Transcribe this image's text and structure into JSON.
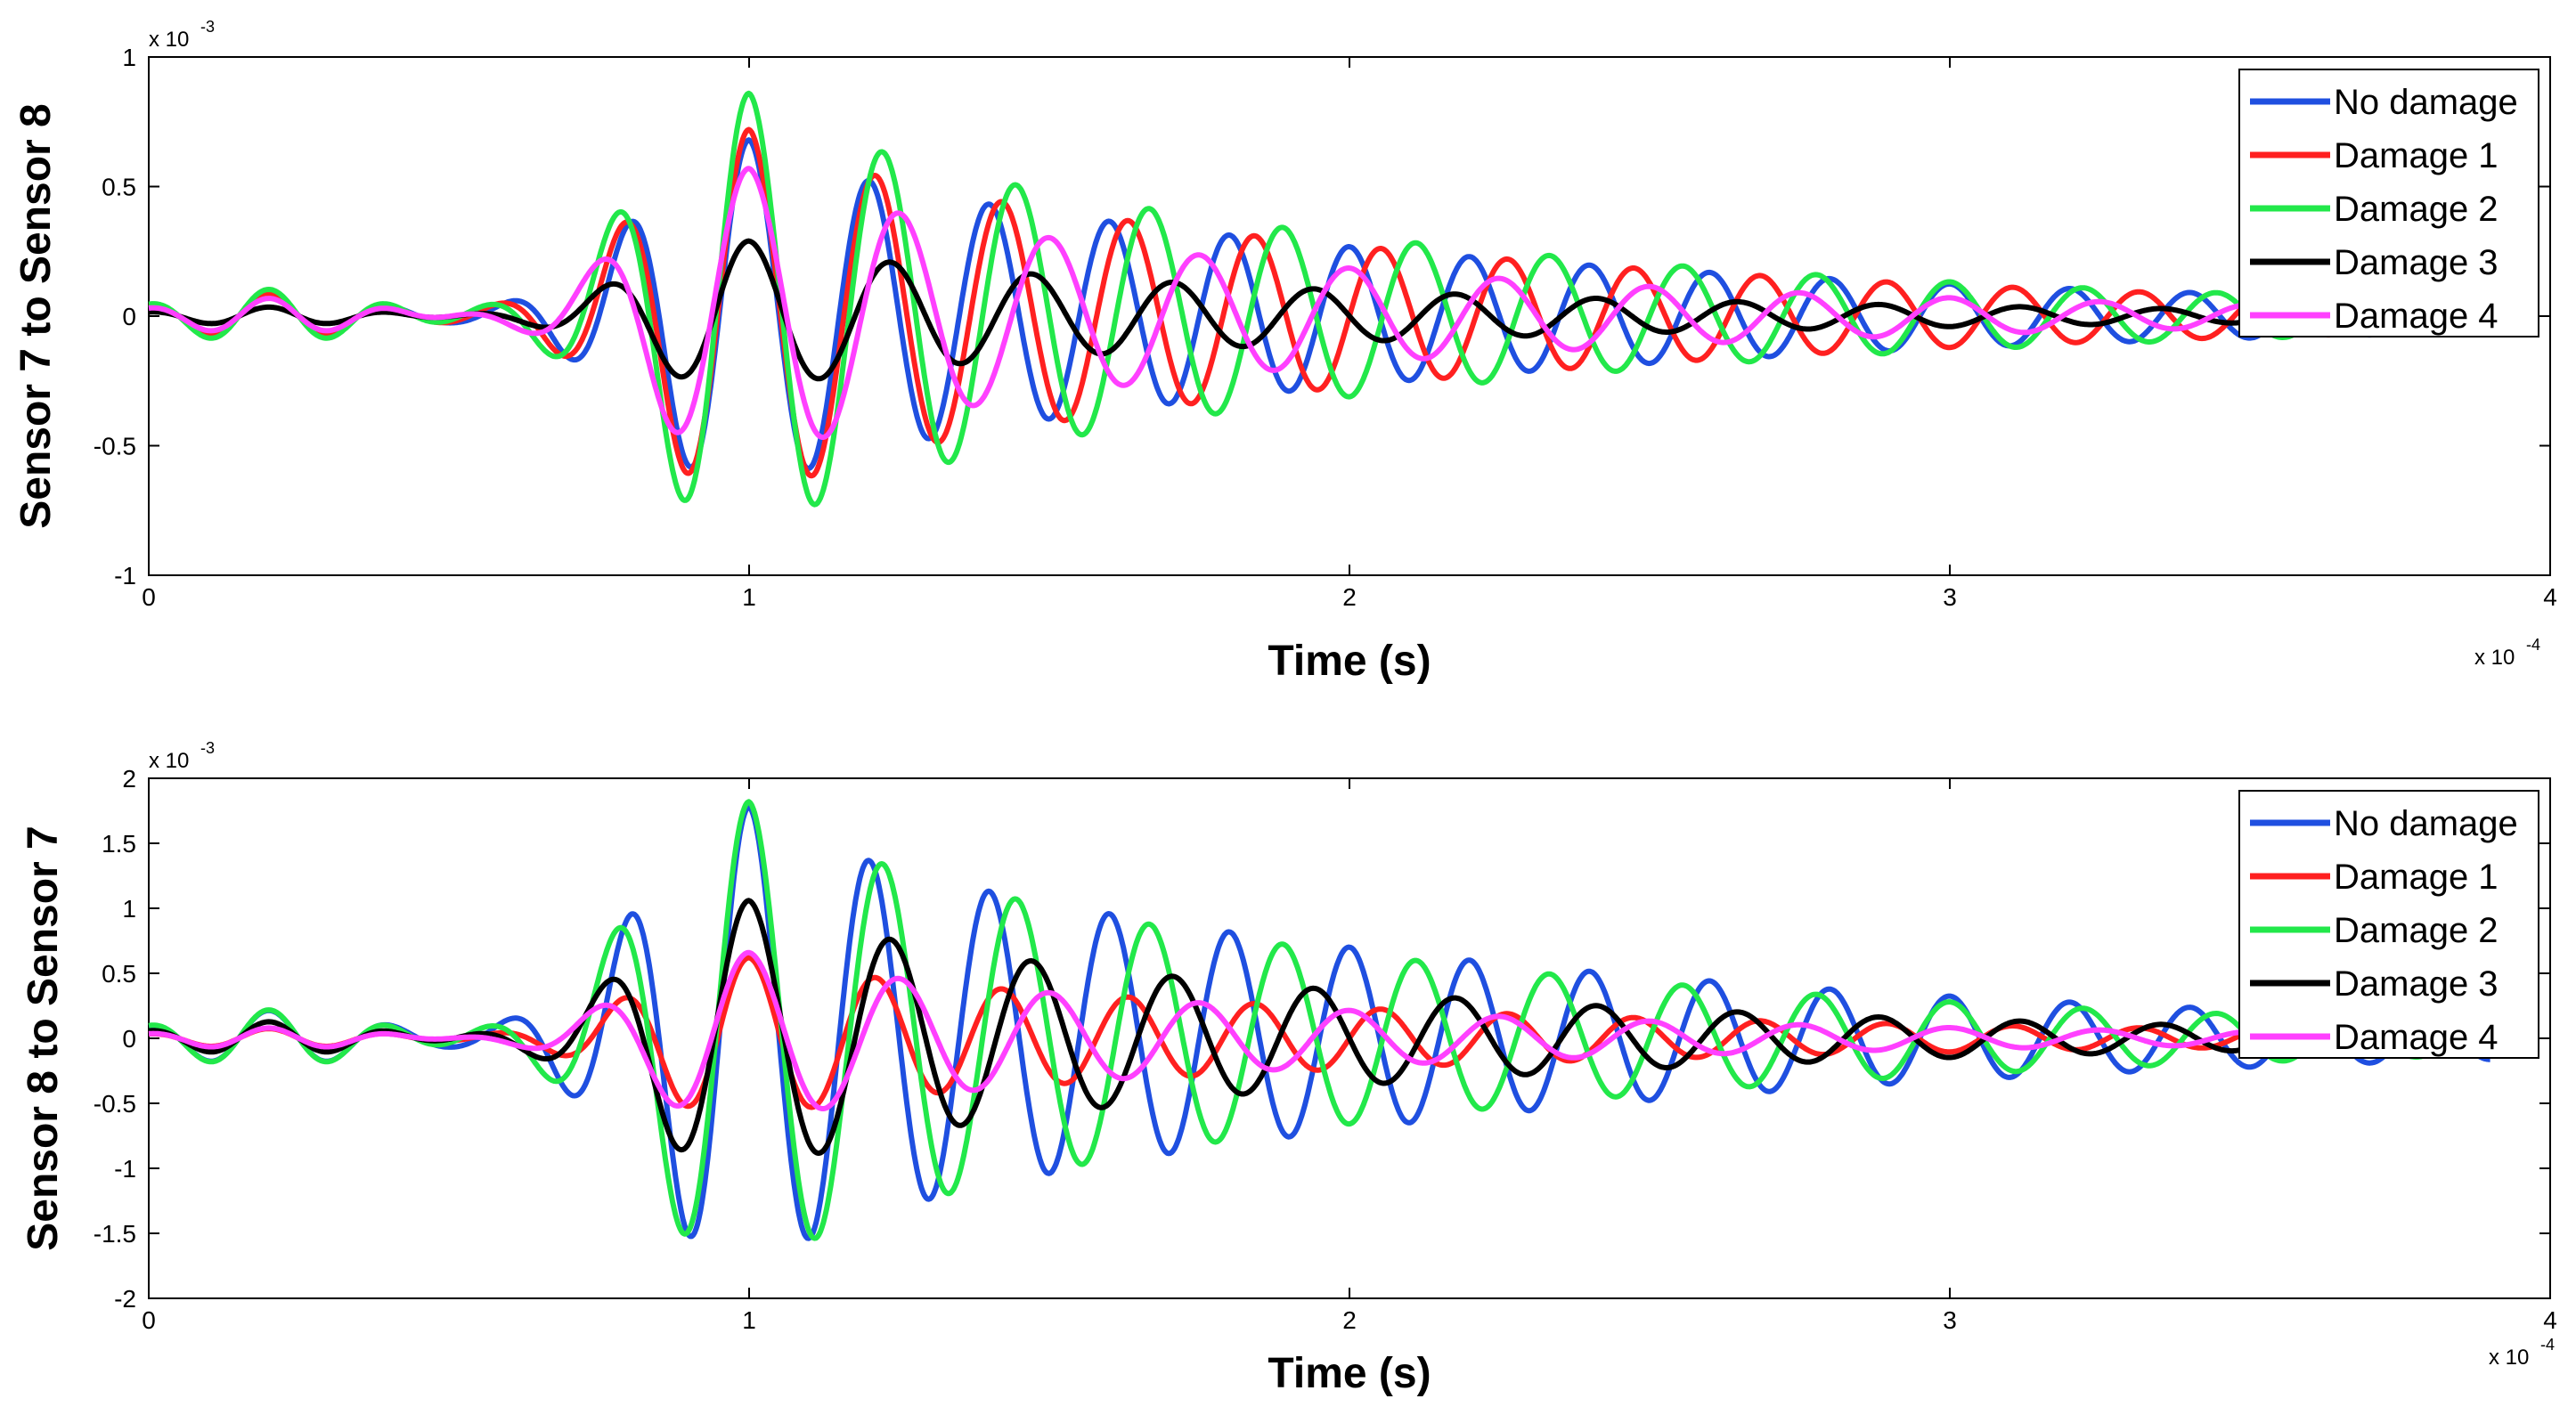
{
  "chart_data": [
    {
      "type": "line",
      "ylabel": "Sensor 7 to Sensor 8",
      "xlabel": "Time (s)",
      "x_exponent_label": "x 10",
      "x_exponent_power": "-4",
      "y_exponent_label": "x 10",
      "y_exponent_power": "-3",
      "xlim": [
        0,
        4
      ],
      "ylim": [
        -1,
        1
      ],
      "xticks": [
        0,
        1,
        2,
        3,
        4
      ],
      "yticks": [
        -1,
        -0.5,
        0,
        0.5,
        1
      ],
      "xtick_labels": [
        "0",
        "1",
        "2",
        "3",
        "4"
      ],
      "ytick_labels": [
        "-1",
        "-0.5",
        "0",
        "0.5",
        "1"
      ],
      "legend_position": "top-right",
      "grid": false,
      "series": [
        {
          "name": "No damage",
          "color": "#1f4fe0",
          "peak_amplitude": 0.68,
          "period": 0.2,
          "velocity_factor": 1.0,
          "phase_shift": 0.0,
          "peak_time": 1.0,
          "x_end": 3.9
        },
        {
          "name": "Damage 1",
          "color": "#ff2020",
          "peak_amplitude": 0.72,
          "period": 0.2,
          "velocity_factor": 0.95,
          "phase_shift": 0.0,
          "peak_time": 1.0,
          "x_end": 3.9
        },
        {
          "name": "Damage 2",
          "color": "#22e84a",
          "peak_amplitude": 0.86,
          "period": 0.2,
          "velocity_factor": 0.9,
          "phase_shift": 0.0,
          "peak_time": 1.0,
          "x_end": 3.9
        },
        {
          "name": "Damage 3",
          "color": "#000000",
          "peak_amplitude": 0.29,
          "period": 0.2,
          "velocity_factor": 0.85,
          "phase_shift": 0.0,
          "peak_time": 1.0,
          "x_end": 3.9
        },
        {
          "name": "Damage 4",
          "color": "#ff40ff",
          "peak_amplitude": 0.57,
          "period": 0.2,
          "velocity_factor": 0.8,
          "phase_shift": 0.0,
          "peak_time": 1.0,
          "x_end": 3.9
        }
      ]
    },
    {
      "type": "line",
      "ylabel": "Sensor 8 to Sensor 7",
      "xlabel": "Time (s)",
      "x_exponent_label": "x 10",
      "x_exponent_power": "-4",
      "y_exponent_label": "x 10",
      "y_exponent_power": "-3",
      "xlim": [
        0,
        4
      ],
      "ylim": [
        -2,
        2
      ],
      "xticks": [
        0,
        1,
        2,
        3,
        4
      ],
      "yticks": [
        -2,
        -1.5,
        -1,
        -0.5,
        0,
        0.5,
        1,
        1.5,
        2
      ],
      "xtick_labels": [
        "0",
        "1",
        "2",
        "3",
        "4"
      ],
      "ytick_labels": [
        "-2",
        "-1.5",
        "-1",
        "-0.5",
        "0",
        "0.5",
        "1",
        "1.5",
        "2"
      ],
      "legend_position": "top-right",
      "grid": false,
      "series": [
        {
          "name": "No damage",
          "color": "#1f4fe0",
          "peak_amplitude": 1.78,
          "period": 0.2,
          "velocity_factor": 1.0,
          "phase_shift": 0.0,
          "peak_time": 1.0,
          "x_end": 3.9
        },
        {
          "name": "Damage 1",
          "color": "#ff2020",
          "peak_amplitude": 0.62,
          "period": 0.2,
          "velocity_factor": 0.95,
          "phase_shift": 0.0,
          "peak_time": 1.0,
          "x_end": 3.9
        },
        {
          "name": "Damage 2",
          "color": "#22e84a",
          "peak_amplitude": 1.82,
          "period": 0.2,
          "velocity_factor": 0.9,
          "phase_shift": 0.0,
          "peak_time": 1.0,
          "x_end": 3.9
        },
        {
          "name": "Damage 3",
          "color": "#000000",
          "peak_amplitude": 1.06,
          "period": 0.2,
          "velocity_factor": 0.85,
          "phase_shift": 0.0,
          "peak_time": 1.0,
          "x_end": 3.9
        },
        {
          "name": "Damage 4",
          "color": "#ff40ff",
          "peak_amplitude": 0.66,
          "period": 0.2,
          "velocity_factor": 0.8,
          "phase_shift": 0.0,
          "peak_time": 1.0,
          "x_end": 3.9
        }
      ]
    }
  ]
}
